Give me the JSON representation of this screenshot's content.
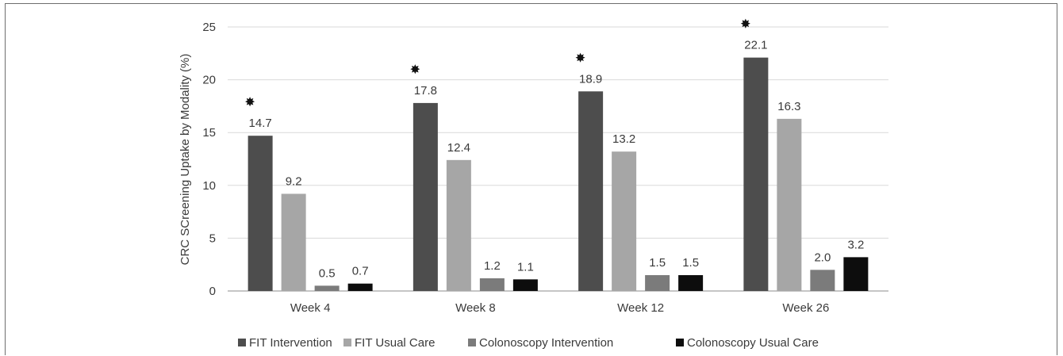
{
  "chart_data": {
    "type": "bar",
    "title": "",
    "xlabel": "",
    "ylabel": "CRC SCreening Uptake by Modality (%)",
    "ylim": [
      0,
      25
    ],
    "yticks": [
      0,
      5,
      10,
      15,
      20,
      25
    ],
    "grid": true,
    "legend_position": "bottom",
    "categories": [
      "Week 4",
      "Week 8",
      "Week 12",
      "Week 26"
    ],
    "series": [
      {
        "name": "FIT Intervention",
        "color": "#4d4d4d",
        "values": [
          14.7,
          17.8,
          18.9,
          22.1
        ],
        "labels": [
          "14.7",
          "17.8",
          "18.9",
          "22.1"
        ]
      },
      {
        "name": "FIT Usual Care",
        "color": "#a6a6a6",
        "values": [
          9.2,
          12.4,
          13.2,
          16.3
        ],
        "labels": [
          "9.2",
          "12.4",
          "13.2",
          "16.3"
        ]
      },
      {
        "name": "Colonoscopy Intervention",
        "color": "#7b7b7b",
        "values": [
          0.5,
          1.2,
          1.5,
          2.0
        ],
        "labels": [
          "0.5",
          "1.2",
          "1.5",
          "2.0"
        ]
      },
      {
        "name": "Colonoscopy Usual Care",
        "color": "#0d0d0d",
        "values": [
          0.7,
          1.1,
          1.5,
          3.2
        ],
        "labels": [
          "0.7",
          "1.1",
          "1.5",
          "3.2"
        ]
      }
    ],
    "significance_marker": {
      "symbol": "✸",
      "series": "FIT Intervention",
      "categories": [
        "Week 4",
        "Week 8",
        "Week 12",
        "Week 26"
      ]
    }
  }
}
